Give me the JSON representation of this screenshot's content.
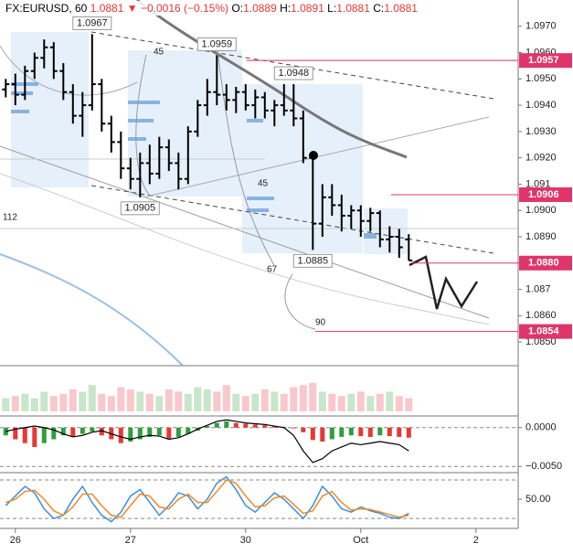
{
  "header": {
    "symbol": "FX:EURUSD, 60",
    "price": "1.0881",
    "change": "−0.0016 (−0.15%)",
    "ohlc": [
      {
        "label": "O:",
        "value": "1.0889"
      },
      {
        "label": "H:",
        "value": "1.0891"
      },
      {
        "label": "L:",
        "value": "1.0881"
      },
      {
        "label": "C:",
        "value": "1.0881"
      }
    ]
  },
  "chart_data": [
    {
      "type": "ohlc",
      "color": "#000000",
      "x": [
        -2,
        0,
        2,
        4,
        6,
        8,
        10,
        12,
        14,
        16,
        18,
        20,
        22,
        24,
        26,
        28,
        30,
        32,
        34,
        36,
        38,
        40,
        42,
        44,
        46,
        48,
        50,
        52,
        54,
        56,
        58,
        60,
        62,
        64,
        66,
        68,
        70,
        72,
        74,
        76,
        78,
        80,
        82
      ],
      "open": [
        1.0946,
        1.0948,
        1.0944,
        1.0953,
        1.0958,
        1.0962,
        1.0953,
        1.0945,
        1.0936,
        1.094,
        1.0948,
        1.0933,
        1.0926,
        1.0916,
        1.0912,
        1.0918,
        1.0914,
        1.0924,
        1.0918,
        1.0912,
        1.093,
        1.094,
        1.0945,
        1.0944,
        1.0942,
        1.0945,
        1.094,
        1.0943,
        1.0938,
        1.094,
        1.0938,
        1.0935,
        1.092,
        1.0895,
        1.0905,
        1.0902,
        1.0898,
        1.09,
        1.0896,
        1.0899,
        1.0889,
        1.089,
        1.0889
      ],
      "high": [
        1.095,
        1.0952,
        1.0955,
        1.096,
        1.0965,
        1.0964,
        1.0956,
        1.0948,
        1.0945,
        1.0967,
        1.095,
        1.0936,
        1.093,
        1.092,
        1.0922,
        1.0925,
        1.0928,
        1.0927,
        1.0922,
        1.0932,
        1.0942,
        1.095,
        1.0959,
        1.0948,
        1.0947,
        1.0948,
        1.0946,
        1.0945,
        1.0942,
        1.0948,
        1.0948,
        1.0938,
        1.0922,
        1.091,
        1.091,
        1.0906,
        1.0902,
        1.0902,
        1.0901,
        1.09,
        1.0894,
        1.0893,
        1.0891
      ],
      "low": [
        1.0943,
        1.094,
        1.0942,
        1.095,
        1.0954,
        1.095,
        1.0942,
        1.0933,
        1.0928,
        1.0938,
        1.093,
        1.0922,
        1.0912,
        1.0908,
        1.0905,
        1.091,
        1.0912,
        1.0915,
        1.0908,
        1.091,
        1.0928,
        1.0936,
        1.094,
        1.0938,
        1.0937,
        1.0938,
        1.0935,
        1.0935,
        1.0932,
        1.0936,
        1.0932,
        1.0918,
        1.0885,
        1.089,
        1.0898,
        1.0892,
        1.0893,
        1.089,
        1.0892,
        1.0886,
        1.0884,
        1.0882,
        1.0881
      ],
      "close": [
        1.0948,
        1.0944,
        1.0953,
        1.0958,
        1.0962,
        1.0953,
        1.0945,
        1.0936,
        1.094,
        1.0948,
        1.0933,
        1.0926,
        1.0916,
        1.0912,
        1.0918,
        1.0914,
        1.0924,
        1.0918,
        1.0912,
        1.093,
        1.094,
        1.0945,
        1.0944,
        1.0942,
        1.0945,
        1.094,
        1.0943,
        1.0938,
        1.094,
        1.0938,
        1.0935,
        1.092,
        1.0895,
        1.0905,
        1.0902,
        1.0898,
        1.09,
        1.0896,
        1.0899,
        1.0889,
        1.089,
        1.0886,
        1.0881
      ],
      "xlim": [
        -3.2,
        104.8
      ],
      "ylim": [
        1.0841,
        1.098
      ],
      "xticks": [
        {
          "value": 0,
          "label": "26"
        },
        {
          "value": 24,
          "label": "27"
        },
        {
          "value": 48,
          "label": "30"
        },
        {
          "value": 72,
          "label": "Oct"
        },
        {
          "value": 96,
          "label": "2"
        }
      ],
      "yticks": [
        {
          "value": 1.085,
          "label": "1.0850"
        },
        {
          "value": 1.086,
          "label": "1.0860"
        },
        1.087,
        {
          "value": 1.088,
          "label": "1.0880"
        },
        {
          "value": 1.089,
          "label": "1.0890"
        },
        {
          "value": 1.09,
          "label": "1.0900"
        },
        1.091,
        {
          "value": 1.092,
          "label": "1.0920"
        },
        {
          "value": 1.093,
          "label": "1.0930"
        },
        {
          "value": 1.094,
          "label": "1.0940"
        },
        {
          "value": 1.095,
          "label": "1.0950"
        },
        {
          "value": 1.096,
          "label": "1.0960"
        },
        {
          "value": 1.097,
          "label": "1.0970"
        }
      ],
      "levels": [
        1.0957,
        1.0906,
        {
          "value": 1.088,
          "label": "1.0880"
        },
        1.0854
      ],
      "level_color": "#e0356b",
      "callouts": [
        {
          "x": 16,
          "value": 1.0967
        },
        {
          "x": 42,
          "value": 1.0959
        },
        {
          "x": 58,
          "value": 1.0948
        },
        {
          "x": 26,
          "value": 1.0905
        },
        {
          "x": 62,
          "value": 1.0885
        }
      ],
      "labels": [
        "45",
        "45",
        "112",
        "67",
        "90"
      ]
    },
    {
      "type": "volume",
      "up_color": "#c8e6c9",
      "down_color": "#f8c8cc",
      "x": [
        -2,
        0,
        2,
        4,
        6,
        8,
        10,
        12,
        14,
        16,
        18,
        20,
        22,
        24,
        26,
        28,
        30,
        32,
        34,
        36,
        38,
        40,
        42,
        44,
        46,
        48,
        50,
        52,
        54,
        56,
        58,
        60,
        62,
        64,
        66,
        68,
        70,
        72,
        74,
        76,
        78,
        80,
        82
      ],
      "values": [
        30,
        35,
        40,
        30,
        45,
        35,
        40,
        50,
        45,
        60,
        40,
        35,
        55,
        50,
        45,
        40,
        35,
        50,
        45,
        40,
        55,
        50,
        45,
        60,
        40,
        35,
        40,
        50,
        45,
        40,
        55,
        60,
        65,
        45,
        40,
        35,
        40,
        45,
        35,
        40,
        45,
        35,
        30
      ],
      "xlim": [
        -3.2,
        104.8
      ],
      "ylim": [
        0,
        100
      ]
    },
    {
      "type": "macd",
      "up_color": "#2e9e3e",
      "down_color": "#e53935",
      "line_color": "#000000",
      "x": [
        -2,
        0,
        2,
        4,
        6,
        8,
        10,
        12,
        14,
        16,
        18,
        20,
        22,
        24,
        26,
        28,
        30,
        32,
        34,
        36,
        38,
        40,
        42,
        44,
        46,
        48,
        50,
        52,
        54,
        56,
        58,
        60,
        62,
        64,
        66,
        68,
        70,
        72,
        74,
        76,
        78,
        80,
        82
      ],
      "histogram": [
        -0.001,
        -0.0015,
        -0.002,
        -0.0025,
        -0.002,
        -0.0015,
        -0.001,
        -0.0012,
        -0.0008,
        -0.0005,
        -0.001,
        -0.0015,
        -0.002,
        -0.0018,
        -0.0015,
        -0.0012,
        -0.001,
        -0.0014,
        -0.0012,
        -0.0008,
        -0.0004,
        0.0002,
        0.0006,
        0.0008,
        0.0006,
        0.0005,
        0.0004,
        0.0003,
        0.0002,
        0.0001,
        -0.0001,
        -0.0006,
        -0.0016,
        -0.0018,
        -0.0015,
        -0.0012,
        -0.001,
        -0.0011,
        -0.0012,
        -0.001,
        -0.0011,
        -0.0012,
        -0.0013
      ],
      "line": [
        -0.0005,
        -0.0002,
        0,
        0.0002,
        0,
        -0.0003,
        -0.0008,
        -0.0012,
        -0.001,
        -0.0006,
        -0.0004,
        -0.0008,
        -0.0012,
        -0.0015,
        -0.0012,
        -0.001,
        -0.0011,
        -0.0015,
        -0.0013,
        -0.0008,
        -0.0002,
        0.0003,
        0.0008,
        0.001,
        0.0008,
        0.0006,
        0.0005,
        0.0004,
        0.0002,
        0,
        -0.001,
        -0.003,
        -0.0045,
        -0.004,
        -0.003,
        -0.0025,
        -0.002,
        -0.0022,
        -0.002,
        -0.0018,
        -0.002,
        -0.0022,
        -0.003
      ],
      "xlim": [
        -3.2,
        104.8
      ],
      "ylim": [
        -0.0058,
        0.0015
      ],
      "yticks": [
        {
          "value": 0,
          "label": "0.0000"
        },
        {
          "value": -0.005,
          "label": "−0.0050"
        }
      ]
    },
    {
      "type": "line",
      "x": [
        -2,
        0,
        2,
        4,
        6,
        8,
        10,
        12,
        14,
        16,
        18,
        20,
        22,
        24,
        26,
        28,
        30,
        32,
        34,
        36,
        38,
        40,
        42,
        44,
        46,
        48,
        50,
        52,
        54,
        56,
        58,
        60,
        62,
        64,
        66,
        68,
        70,
        72,
        74,
        76,
        78,
        80,
        82
      ],
      "series": [
        {
          "color": "#3d8fe0",
          "values": [
            40,
            55,
            70,
            60,
            35,
            20,
            25,
            50,
            70,
            45,
            25,
            15,
            30,
            55,
            65,
            45,
            25,
            40,
            60,
            55,
            35,
            50,
            75,
            85,
            65,
            40,
            30,
            45,
            60,
            50,
            35,
            20,
            40,
            70,
            55,
            35,
            30,
            38,
            32,
            28,
            22,
            20,
            28
          ]
        },
        {
          "color": "#f08a24",
          "values": [
            45,
            50,
            62,
            64,
            50,
            32,
            25,
            38,
            58,
            58,
            40,
            25,
            22,
            40,
            58,
            55,
            38,
            35,
            50,
            58,
            45,
            45,
            62,
            80,
            75,
            55,
            38,
            40,
            52,
            55,
            42,
            28,
            32,
            55,
            62,
            45,
            33,
            35,
            34,
            30,
            26,
            22,
            25
          ]
        }
      ],
      "xlim": [
        -3.2,
        104.8
      ],
      "ylim": [
        6,
        90
      ],
      "yticks": [
        {
          "value": 50,
          "label": "50.00"
        }
      ],
      "bands": [
        20,
        80
      ]
    }
  ]
}
